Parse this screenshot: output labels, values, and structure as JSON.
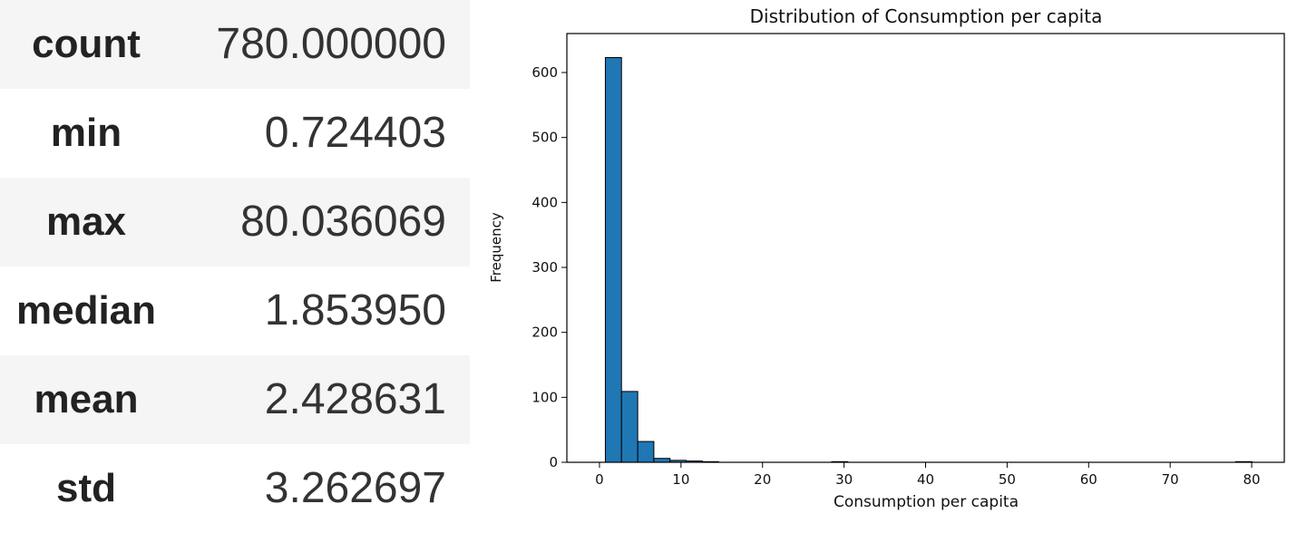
{
  "stats": [
    {
      "label": "count",
      "value": "780.000000"
    },
    {
      "label": "min",
      "value": "0.724403"
    },
    {
      "label": "max",
      "value": "80.036069"
    },
    {
      "label": "median",
      "value": "1.853950"
    },
    {
      "label": "mean",
      "value": "2.428631"
    },
    {
      "label": "std",
      "value": "3.262697"
    }
  ],
  "chart_data": {
    "type": "bar",
    "title": "Distribution of Consumption per capita",
    "xlabel": "Consumption per capita",
    "ylabel": "Frequency",
    "xlim": [
      -4.0,
      84.0
    ],
    "ylim": [
      0,
      660
    ],
    "xticks": [
      0,
      10,
      20,
      30,
      40,
      50,
      60,
      70,
      80
    ],
    "yticks": [
      0,
      100,
      200,
      300,
      400,
      500,
      600
    ],
    "bin_edges": [
      0.72,
      2.7,
      4.69,
      6.67,
      8.65,
      10.63,
      12.62,
      14.6,
      16.58,
      18.56,
      20.55,
      22.53,
      24.51,
      26.49,
      28.48,
      30.46,
      32.44,
      34.42,
      36.41,
      38.39,
      40.37,
      42.35,
      44.34,
      46.32,
      48.3,
      50.28,
      52.27,
      54.25,
      56.23,
      58.21,
      60.2,
      62.18,
      64.16,
      66.14,
      68.13,
      70.11,
      72.09,
      74.07,
      76.06,
      78.04,
      80.04
    ],
    "values": [
      623,
      109,
      32,
      6,
      3,
      2,
      1,
      0,
      0,
      0,
      0,
      0,
      0,
      0,
      1,
      0,
      0,
      0,
      0,
      0,
      0,
      0,
      0,
      0,
      0,
      0,
      0,
      0,
      0,
      0,
      0,
      0,
      0,
      0,
      0,
      0,
      0,
      0,
      0,
      1
    ],
    "bar_color": "#1f77b4",
    "edge_color": "#000000",
    "grid": false,
    "legend": "none"
  }
}
